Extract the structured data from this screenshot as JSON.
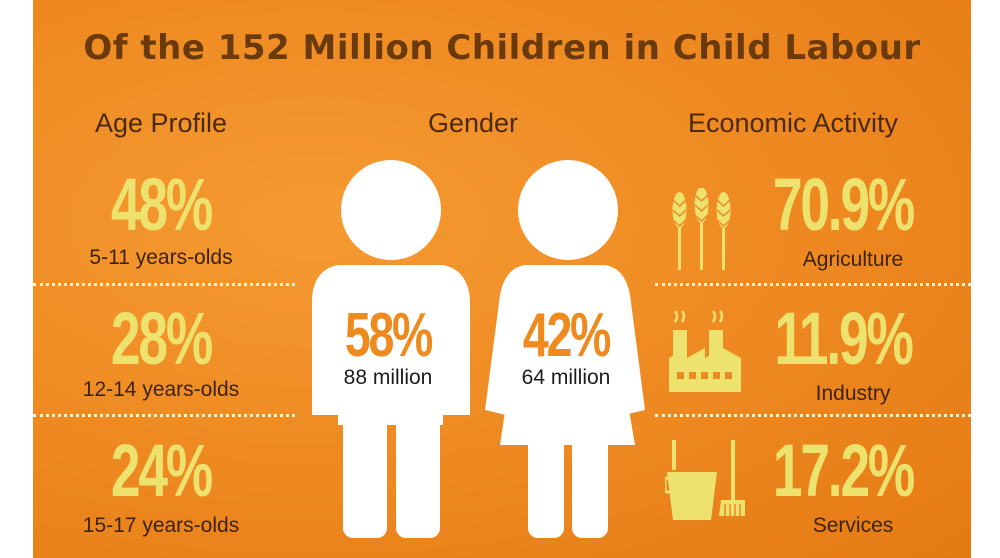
{
  "title": "Of the 152 Million Children in Child Labour",
  "headings": {
    "age": "Age Profile",
    "gender": "Gender",
    "economic": "Economic Activity"
  },
  "age_profile": [
    {
      "percent": "48%",
      "label": "5-11 years-olds"
    },
    {
      "percent": "28%",
      "label": "12-14 years-olds"
    },
    {
      "percent": "24%",
      "label": "15-17 years-olds"
    }
  ],
  "gender": [
    {
      "percent": "58%",
      "label": "88 million",
      "icon": "boy-icon"
    },
    {
      "percent": "42%",
      "label": "64 million",
      "icon": "girl-icon"
    }
  ],
  "economic_activity": [
    {
      "percent": "70.9%",
      "label": "Agriculture",
      "icon": "wheat-icon"
    },
    {
      "percent": "11.9%",
      "label": "Industry",
      "icon": "factory-icon"
    },
    {
      "percent": "17.2%",
      "label": "Services",
      "icon": "cleaning-bucket-icon"
    }
  ],
  "colors": {
    "background": "#ee8820",
    "title": "#6a3a0c",
    "percent": "#ede26e",
    "figure": "#ffffff",
    "figure_text": "#ee8a1e"
  }
}
